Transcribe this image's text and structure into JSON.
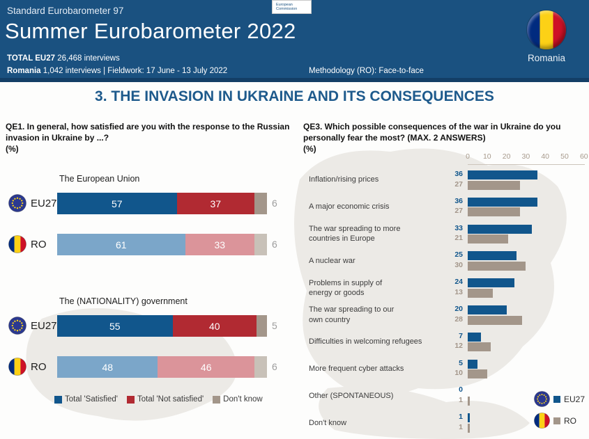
{
  "header": {
    "eyebrow": "Standard Eurobarometer 97",
    "title": "Summer Eurobarometer 2022",
    "total_bold": "TOTAL EU27",
    "total_rest": " 26,468 interviews",
    "country_bold": "Romania",
    "country_rest": " 1,042 interviews  |  Fieldwork: 17 June - 13 July 2022",
    "methodology": "Methodology (RO): Face-to-face",
    "ec_logo_line1": "European",
    "ec_logo_line2": "Commission",
    "flag_caption": "Romania"
  },
  "section_title": "3. THE INVASION IN UKRAINE AND ITS CONSEQUENCES",
  "colors": {
    "header_bg": "#1a5180",
    "satisfied_eu": "#11568c",
    "satisfied_ro": "#7ba6c9",
    "not_satisfied_eu": "#b12a32",
    "not_satisfied_ro": "#db949a",
    "dont_know_eu": "#a3968a",
    "dont_know_ro": "#c8c1b8",
    "qe3_eu": "#11568c",
    "qe3_ro": "#a3968a",
    "outside_value": "#9d9d9d"
  },
  "chart_data": [
    {
      "type": "bar",
      "orientation": "horizontal",
      "stacked": true,
      "question": "QE1. In general, how satisfied are you with the response to the Russian invasion in Ukraine by ...?",
      "unit": "(%)",
      "xlim": [
        0,
        100
      ],
      "legend": [
        "Total 'Satisfied'",
        "Total 'Not satisfied'",
        "Don't know"
      ],
      "groups": [
        {
          "title": "The European Union",
          "rows": [
            {
              "entity": "EU27",
              "satisfied": 57,
              "not_satisfied": 37,
              "dont_know": 6
            },
            {
              "entity": "RO",
              "satisfied": 61,
              "not_satisfied": 33,
              "dont_know": 6
            }
          ]
        },
        {
          "title": "The (NATIONALITY) government",
          "rows": [
            {
              "entity": "EU27",
              "satisfied": 55,
              "not_satisfied": 40,
              "dont_know": 5
            },
            {
              "entity": "RO",
              "satisfied": 48,
              "not_satisfied": 46,
              "dont_know": 6
            }
          ]
        }
      ]
    },
    {
      "type": "bar",
      "orientation": "horizontal",
      "grouped": true,
      "question": "QE3. Which possible consequences of the war in Ukraine do you personally fear the most? (MAX. 2 ANSWERS)",
      "unit": "(%)",
      "xlim": [
        0,
        60
      ],
      "xticks": [
        0,
        10,
        20,
        30,
        40,
        50,
        60
      ],
      "legend_position": "bottom-right",
      "categories": [
        "Inflation/rising prices",
        "A major economic crisis",
        "The war spreading to more\ncountries in Europe",
        "A nuclear war",
        "Problems in supply of\nenergy or goods",
        "The war spreading to our\nown country",
        "Difficulties in welcoming refugees",
        "More frequent cyber attacks",
        "Other (SPONTANEOUS)",
        "Don't know"
      ],
      "series": [
        {
          "name": "EU27",
          "values": [
            36,
            36,
            33,
            25,
            24,
            20,
            7,
            5,
            0,
            1
          ]
        },
        {
          "name": "RO",
          "values": [
            27,
            27,
            21,
            30,
            13,
            28,
            12,
            10,
            1,
            1
          ]
        }
      ]
    }
  ]
}
